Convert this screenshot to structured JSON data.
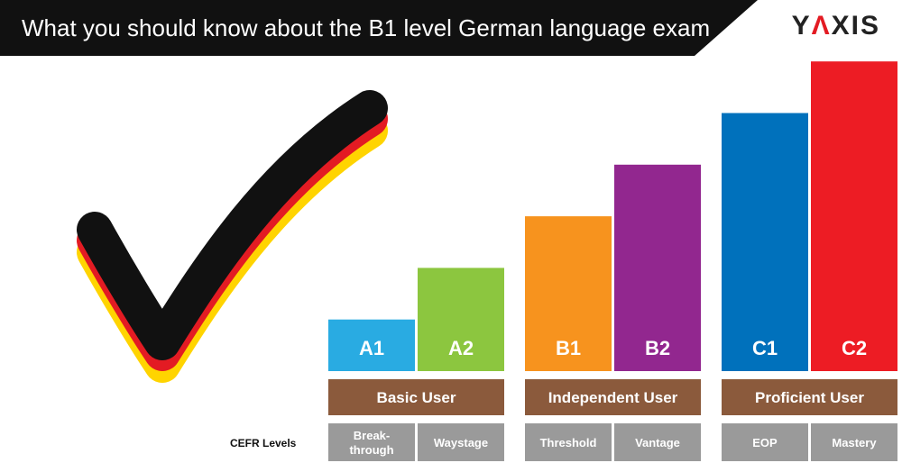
{
  "header": {
    "title": "What you should know about the B1 level German language exam",
    "logo_left": "Y",
    "logo_accent": "Λ",
    "logo_right": "XIS"
  },
  "colors": {
    "header_bg": "#111111",
    "brown": "#8b5a3c",
    "gray": "#9a9a9a",
    "check_black": "#111111",
    "check_red": "#e31b23",
    "check_yellow": "#ffd400"
  },
  "cefr_label": "CEFR Levels",
  "chart_data": {
    "type": "bar",
    "categories": [
      "A1",
      "A2",
      "B1",
      "B2",
      "C1",
      "C2"
    ],
    "values": [
      1,
      2,
      3,
      4,
      5,
      6
    ],
    "bar_colors": [
      "#29abe2",
      "#8cc63f",
      "#f7931e",
      "#92278f",
      "#0071bc",
      "#ed1c24"
    ],
    "groups": [
      {
        "label": "Basic User",
        "levels": [
          "A1",
          "A2"
        ]
      },
      {
        "label": "Independent User",
        "levels": [
          "B1",
          "B2"
        ]
      },
      {
        "label": "Proficient User",
        "levels": [
          "C1",
          "C2"
        ]
      }
    ],
    "descriptors": [
      "Break-\nthrough",
      "Waystage",
      "Threshold",
      "Vantage",
      "EOP",
      "Mastery"
    ]
  }
}
